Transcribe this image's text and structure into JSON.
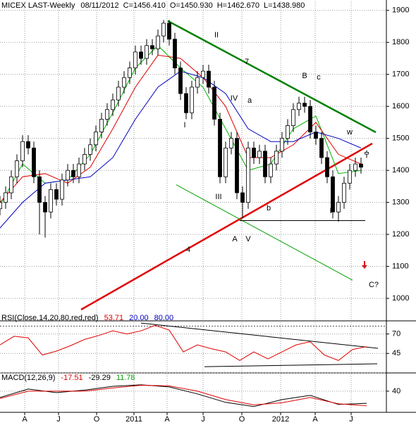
{
  "chart_data": [
    {
      "type": "candlestick",
      "title": "MICEX LAST-Weekly",
      "date": "08/11/2012",
      "quote_labels": [
        "C=1456.410",
        "O=1450.930",
        "H=1462.670",
        "L=1438.980"
      ],
      "xlim": [
        0,
        137
      ],
      "xticks": [
        {
          "value": 8.75,
          "label": "A"
        },
        {
          "value": 20.75,
          "label": "J"
        },
        {
          "value": 34.25,
          "label": "O"
        },
        {
          "value": 47.5,
          "label": "2011"
        },
        {
          "value": 59.25,
          "label": "A"
        },
        {
          "value": 72,
          "label": "J"
        },
        {
          "value": 85.75,
          "label": "O"
        },
        {
          "value": 99.5,
          "label": "2012"
        },
        {
          "value": 111.75,
          "label": "A"
        },
        {
          "value": 124.5,
          "label": "J"
        }
      ],
      "ylim": [
        932,
        1928
      ],
      "yticks": [
        1000,
        1100,
        1200,
        1300,
        1400,
        1500,
        1600,
        1700,
        1800,
        1900
      ],
      "grid": true,
      "x": [
        0,
        2,
        4,
        6,
        8,
        10,
        12,
        14,
        16,
        18,
        20,
        22,
        24,
        26,
        28,
        30,
        32,
        34,
        36,
        38,
        40,
        42,
        44,
        46,
        48,
        50,
        52,
        54,
        56,
        58,
        60,
        62,
        64,
        66,
        68,
        70,
        72,
        74,
        76,
        78,
        80,
        82,
        84,
        86,
        88,
        90,
        92,
        94,
        96,
        98,
        100,
        102,
        104,
        106,
        108,
        110,
        112,
        114,
        116,
        118,
        120,
        122,
        124,
        126,
        128,
        130
      ],
      "open": [
        1280,
        1300,
        1330,
        1380,
        1430,
        1490,
        1470,
        1380,
        1300,
        1270,
        1340,
        1310,
        1370,
        1400,
        1380,
        1420,
        1450,
        1480,
        1520,
        1560,
        1590,
        1620,
        1660,
        1690,
        1720,
        1770,
        1750,
        1790,
        1780,
        1820,
        1860,
        1810,
        1720,
        1640,
        1580,
        1660,
        1690,
        1710,
        1660,
        1560,
        1380,
        1470,
        1500,
        1330,
        1300,
        1470,
        1440,
        1460,
        1380,
        1420,
        1460,
        1500,
        1540,
        1590,
        1610,
        1600,
        1520,
        1500,
        1440,
        1380,
        1270,
        1300,
        1360,
        1400,
        1420,
        1450.93
      ],
      "high": [
        1320,
        1350,
        1400,
        1450,
        1510,
        1510,
        1490,
        1400,
        1320,
        1360,
        1360,
        1390,
        1420,
        1420,
        1440,
        1470,
        1500,
        1540,
        1580,
        1610,
        1640,
        1680,
        1710,
        1740,
        1790,
        1790,
        1810,
        1810,
        1840,
        1870,
        1870,
        1830,
        1740,
        1660,
        1680,
        1710,
        1730,
        1730,
        1680,
        1580,
        1490,
        1520,
        1520,
        1350,
        1490,
        1490,
        1480,
        1480,
        1440,
        1480,
        1520,
        1560,
        1610,
        1630,
        1630,
        1620,
        1540,
        1520,
        1460,
        1400,
        1320,
        1380,
        1420,
        1440,
        1440,
        1462.67
      ],
      "low": [
        1260,
        1280,
        1310,
        1360,
        1410,
        1450,
        1360,
        1200,
        1190,
        1250,
        1290,
        1290,
        1350,
        1360,
        1360,
        1400,
        1430,
        1460,
        1500,
        1540,
        1570,
        1600,
        1640,
        1670,
        1700,
        1730,
        1730,
        1760,
        1760,
        1800,
        1790,
        1700,
        1620,
        1560,
        1560,
        1640,
        1670,
        1640,
        1540,
        1360,
        1360,
        1450,
        1310,
        1250,
        1280,
        1420,
        1420,
        1360,
        1360,
        1400,
        1440,
        1480,
        1520,
        1570,
        1580,
        1500,
        1480,
        1420,
        1360,
        1250,
        1240,
        1280,
        1340,
        1380,
        1390,
        1438.98
      ],
      "close": [
        1300,
        1330,
        1380,
        1430,
        1490,
        1470,
        1380,
        1300,
        1270,
        1340,
        1310,
        1370,
        1400,
        1380,
        1420,
        1450,
        1480,
        1520,
        1560,
        1590,
        1620,
        1660,
        1690,
        1720,
        1770,
        1750,
        1790,
        1780,
        1820,
        1860,
        1810,
        1720,
        1640,
        1580,
        1660,
        1690,
        1710,
        1660,
        1560,
        1380,
        1470,
        1500,
        1330,
        1300,
        1470,
        1440,
        1460,
        1380,
        1420,
        1460,
        1500,
        1540,
        1590,
        1610,
        1600,
        1520,
        1500,
        1440,
        1380,
        1270,
        1300,
        1360,
        1400,
        1420,
        1410,
        1456.41
      ],
      "series": [
        {
          "color": "#00b400",
          "x": [
            0,
            8,
            16,
            24,
            32,
            40,
            48,
            56,
            64,
            72,
            80,
            88,
            96,
            104,
            112,
            120,
            128
          ],
          "values": [
            1290,
            1420,
            1360,
            1370,
            1450,
            1580,
            1720,
            1790,
            1720,
            1660,
            1530,
            1400,
            1420,
            1530,
            1570,
            1390,
            1400
          ]
        },
        {
          "color": "#e00000",
          "x": [
            0,
            8,
            16,
            24,
            32,
            40,
            48,
            56,
            64,
            72,
            80,
            88,
            96,
            104,
            112,
            120,
            128
          ],
          "values": [
            1300,
            1380,
            1390,
            1360,
            1410,
            1530,
            1660,
            1760,
            1750,
            1690,
            1600,
            1440,
            1440,
            1480,
            1550,
            1450,
            1420
          ]
        },
        {
          "color": "#0000c0",
          "x": [
            0,
            8,
            16,
            24,
            32,
            40,
            48,
            56,
            64,
            72,
            80,
            88,
            96,
            104,
            112,
            120,
            128
          ],
          "values": [
            1220,
            1300,
            1360,
            1370,
            1380,
            1440,
            1560,
            1660,
            1710,
            1690,
            1640,
            1530,
            1490,
            1490,
            1520,
            1500,
            1470
          ]
        }
      ],
      "trendlines": [
        {
          "color": "#008000",
          "x": [
            59.5,
            133.25
          ],
          "values": [
            1867,
            1519
          ]
        },
        {
          "color": "#e00000",
          "x": [
            28.75,
            132
          ],
          "values": [
            965,
            1484
          ]
        },
        {
          "color": "#00a000",
          "x": [
            62.5,
            125
          ],
          "values": [
            1355,
            1057
          ]
        },
        {
          "color": "#000000",
          "x": [
            85,
            129.5
          ],
          "values": [
            1243,
            1243
          ]
        }
      ],
      "annotations": [
        {
          "text": "II",
          "color": "#e02020"
        },
        {
          "text": "7",
          "color": "#008000"
        },
        {
          "text": "B",
          "color": "#e02020"
        },
        {
          "text": "c",
          "color": "#008080"
        },
        {
          "text": "I",
          "color": "#e02020"
        },
        {
          "text": "IV",
          "color": "#e02020"
        },
        {
          "text": "a",
          "color": "#2060c0"
        },
        {
          "text": "w",
          "color": "#e02020"
        },
        {
          "text": "III",
          "color": "#e02020"
        },
        {
          "text": "b",
          "color": "#008080"
        },
        {
          "text": "A",
          "color": "#e02020"
        },
        {
          "text": "V",
          "color": "#e02020"
        },
        {
          "text": "4",
          "color": "#e02020"
        },
        {
          "text": "I",
          "color": "#e02020"
        },
        {
          "text": "C?",
          "color": "#e02020"
        }
      ]
    },
    {
      "type": "line",
      "title": "RSI(Close,14,20,80,red,red)",
      "current": 53.71,
      "levels": [
        {
          "value": 20,
          "label": "20.00"
        },
        {
          "value": 80,
          "label": "80.00"
        }
      ],
      "ylim": [
        20,
        85
      ],
      "yticks": [
        45,
        70
      ],
      "grid": true,
      "series": [
        {
          "color": "#e00000",
          "x": [
            0,
            5,
            10,
            15,
            20,
            25,
            30,
            35,
            40,
            45,
            50,
            55,
            60,
            65,
            70,
            75,
            80,
            85,
            90,
            95,
            100,
            105,
            110,
            115,
            120,
            125,
            130
          ],
          "values": [
            56,
            67,
            65,
            43,
            48,
            55,
            63,
            68,
            74,
            70,
            74,
            81,
            75,
            47,
            56,
            51,
            47,
            36,
            47,
            38,
            47,
            56,
            60,
            43,
            36,
            50,
            53.71
          ]
        }
      ],
      "trendlines": [
        {
          "color": "#000000",
          "x": [
            50,
            134
          ],
          "values": [
            84,
            51.6
          ]
        },
        {
          "color": "#000000",
          "x": [
            72.5,
            133.75
          ],
          "values": [
            28,
            31.7
          ]
        }
      ]
    },
    {
      "type": "line",
      "title": "MACD(12,26,9)",
      "current": {
        "macd": -17.51,
        "signal": -29.29,
        "histogram": 11.78
      },
      "ylim": [
        -57,
        123
      ],
      "yticks": [
        40
      ],
      "grid": true,
      "series": [
        {
          "color": "#000000",
          "x": [
            0,
            10,
            20,
            30,
            40,
            50,
            60,
            70,
            80,
            90,
            100,
            110,
            120,
            130
          ],
          "values": [
            10,
            50,
            33,
            45,
            63,
            70,
            60,
            27,
            -13,
            -33,
            0,
            20,
            -23,
            -17.51
          ]
        },
        {
          "color": "#e00000",
          "x": [
            0,
            10,
            20,
            30,
            40,
            50,
            60,
            70,
            80,
            90,
            100,
            110,
            120,
            130
          ],
          "values": [
            5,
            40,
            40,
            40,
            55,
            68,
            65,
            40,
            0,
            -25,
            -15,
            10,
            -20,
            -29.29
          ]
        }
      ]
    }
  ]
}
